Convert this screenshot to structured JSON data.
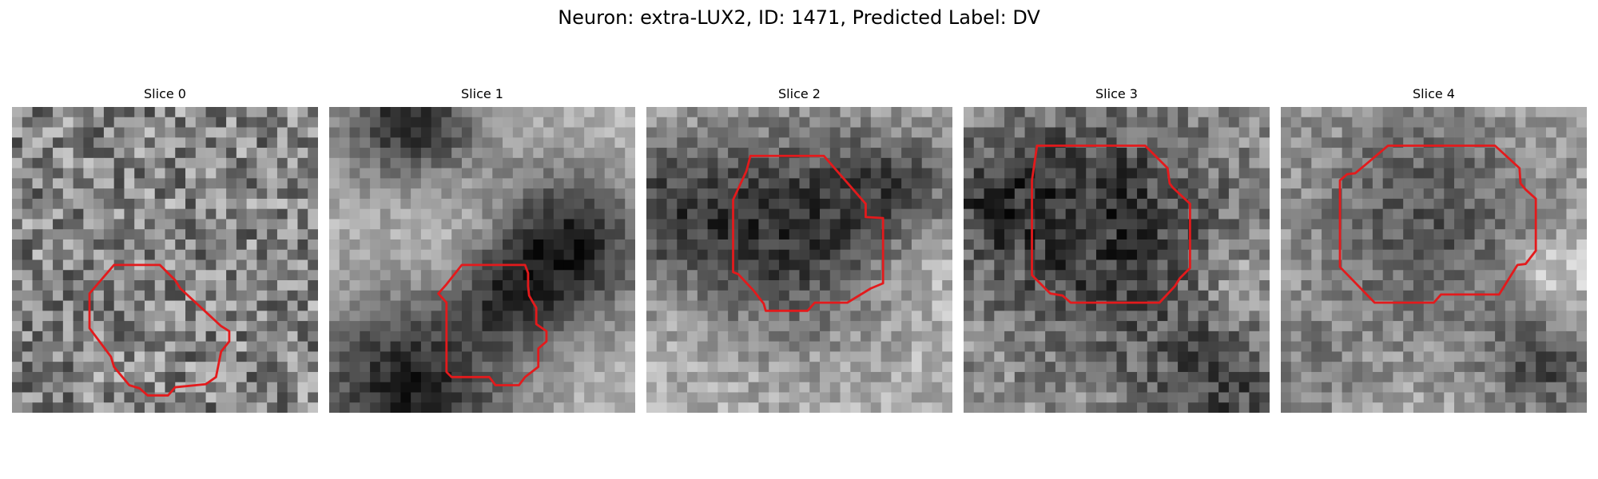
{
  "figure": {
    "title": "Neuron: extra-LUX2, ID: 1471, Predicted Label: DV"
  },
  "style": {
    "contour_color": "#e31a1c",
    "colormap": "gray"
  },
  "panels": [
    {
      "title": "Slice 0"
    },
    {
      "title": "Slice 1"
    },
    {
      "title": "Slice 2"
    },
    {
      "title": "Slice 3"
    },
    {
      "title": "Slice 4"
    }
  ]
}
